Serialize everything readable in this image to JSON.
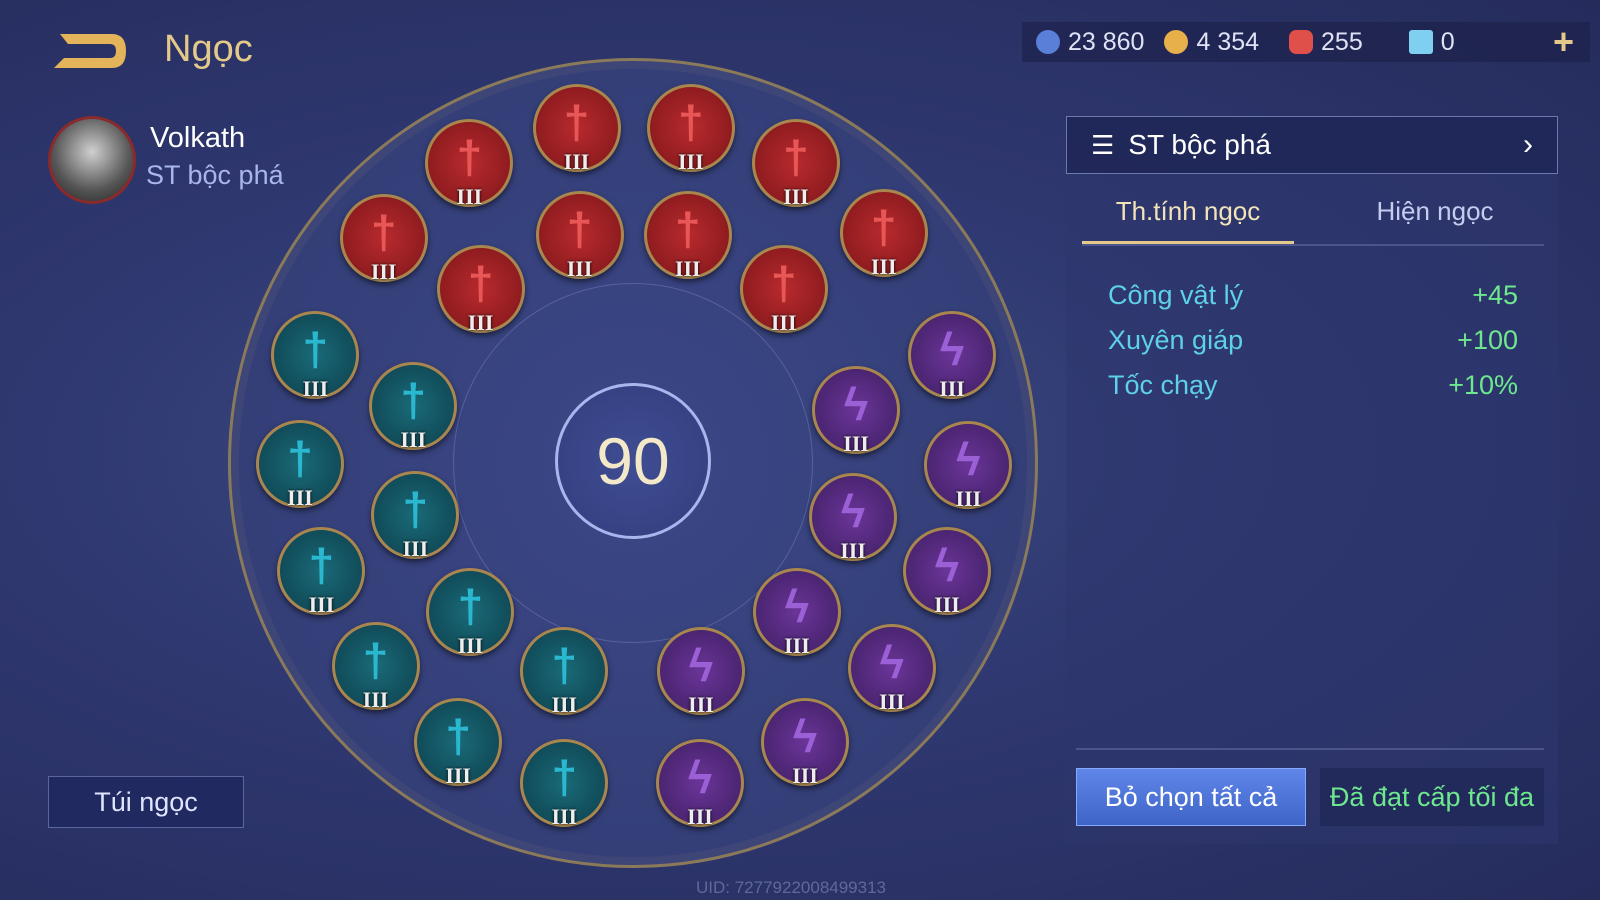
{
  "header": {
    "title": "Ngọc",
    "back_icon": "back-arrow-icon"
  },
  "hero": {
    "name": "Volkath",
    "set_name": "ST bộc phá"
  },
  "resources": [
    {
      "icon": "blue-coin-icon",
      "color": "#5a7fd8",
      "value": "23 860"
    },
    {
      "icon": "gold-coin-icon",
      "color": "#e8b04a",
      "value": "4 354"
    },
    {
      "icon": "red-gem-icon",
      "color": "#e0504a",
      "value": "255"
    },
    {
      "icon": "blue-card-icon",
      "color": "#7fd0f0",
      "value": "0"
    }
  ],
  "center_level": "90",
  "gems": {
    "level_label": "III",
    "red_count": 10,
    "teal_count": 10,
    "purple_count": 10,
    "colors": {
      "red": "#b82a2e",
      "teal": "#1a6a78",
      "purple": "#6a3598"
    }
  },
  "panel": {
    "set_title": "ST bộc phá",
    "tabs": [
      {
        "label": "Th.tính ngọc",
        "active": true
      },
      {
        "label": "Hiện ngọc",
        "active": false
      }
    ],
    "stats": [
      {
        "name": "Công vật lý",
        "value": "+45"
      },
      {
        "name": "Xuyên giáp",
        "value": "+100"
      },
      {
        "name": "Tốc chạy",
        "value": "+10%"
      }
    ],
    "deselect_label": "Bỏ chọn tất cả",
    "max_label": "Đã đạt cấp tối đa"
  },
  "bag_label": "Túi ngọc",
  "uid": "UID: 7277922008499313"
}
